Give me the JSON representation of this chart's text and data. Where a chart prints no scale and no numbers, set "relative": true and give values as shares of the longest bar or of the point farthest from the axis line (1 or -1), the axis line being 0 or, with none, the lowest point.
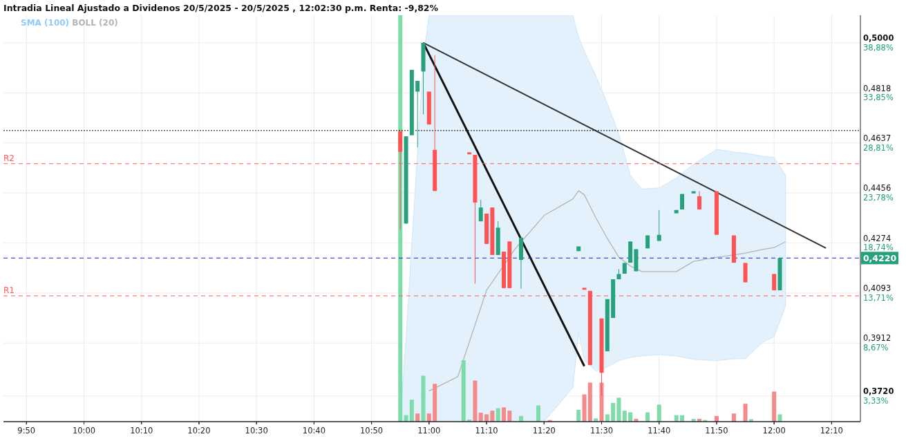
{
  "chart_data": [
    {
      "type": "candlestick",
      "title": "Intradia Lineal Ajustado a Dividenos 20/5/2025 - 20/5/2025 , 12:02:30 p.m. Renta: -9,82%",
      "x": [
        "2025-05-20T10:55",
        "2025-05-20T10:56",
        "2025-05-20T10:57",
        "2025-05-20T10:58",
        "2025-05-20T10:59",
        "2025-05-20T11:00",
        "2025-05-20T11:01",
        "2025-05-20T11:07",
        "2025-05-20T11:08",
        "2025-05-20T11:09",
        "2025-05-20T11:10",
        "2025-05-20T11:11",
        "2025-05-20T11:12",
        "2025-05-20T11:13",
        "2025-05-20T11:14",
        "2025-05-20T11:16",
        "2025-05-20T11:26",
        "2025-05-20T11:27",
        "2025-05-20T11:28",
        "2025-05-20T11:30",
        "2025-05-20T11:31",
        "2025-05-20T11:32",
        "2025-05-20T11:33",
        "2025-05-20T11:34",
        "2025-05-20T11:35",
        "2025-05-20T11:36",
        "2025-05-20T11:38",
        "2025-05-20T11:40",
        "2025-05-20T11:43",
        "2025-05-20T11:44",
        "2025-05-20T11:46",
        "2025-05-20T11:47",
        "2025-05-20T11:50",
        "2025-05-20T11:53",
        "2025-05-20T11:55",
        "2025-05-20T12:00",
        "2025-05-20T12:01"
      ],
      "ohlc": [
        [
          0.4679,
          0.4679,
          0.4322,
          0.4605
        ],
        [
          0.4345,
          0.4661,
          0.4345,
          0.4661
        ],
        [
          0.4665,
          0.4902,
          0.4665,
          0.4902
        ],
        [
          0.4823,
          0.4862,
          0.4621,
          0.4862
        ],
        [
          0.4896,
          0.5,
          0.4741,
          0.5
        ],
        [
          0.4823,
          0.4823,
          0.4704,
          0.4704
        ],
        [
          0.4612,
          0.4955,
          0.4463,
          0.4463
        ],
        [
          0.4603,
          0.4603,
          0.4596,
          0.4596
        ],
        [
          0.4594,
          0.4594,
          0.4127,
          0.4421
        ],
        [
          0.4353,
          0.4431,
          0.4353,
          0.4403
        ],
        [
          0.4381,
          0.4381,
          0.4271,
          0.4271
        ],
        [
          0.4403,
          0.4403,
          0.4231,
          0.4231
        ],
        [
          0.4231,
          0.4353,
          0.4231,
          0.433
        ],
        [
          0.4243,
          0.4243,
          0.4111,
          0.4111
        ],
        [
          0.428,
          0.428,
          0.4111,
          0.4111
        ],
        [
          0.4213,
          0.4294,
          0.4109,
          0.4294
        ],
        [
          0.4245,
          0.4262,
          0.4245,
          0.4262
        ],
        [
          0.4112,
          0.4112,
          0.4105,
          0.4105
        ],
        [
          0.4101,
          0.4101,
          0.3832,
          0.3832
        ],
        [
          0.4001,
          0.4001,
          0.372,
          0.3804
        ],
        [
          0.3882,
          0.4071,
          0.3882,
          0.4071
        ],
        [
          0.4003,
          0.4143,
          0.4003,
          0.4143
        ],
        [
          0.4143,
          0.418,
          0.4143,
          0.4162
        ],
        [
          0.4163,
          0.4202,
          0.4163,
          0.4202
        ],
        [
          0.4203,
          0.428,
          0.4203,
          0.428
        ],
        [
          0.4172,
          0.4252,
          0.4172,
          0.4252
        ],
        [
          0.4255,
          0.4302,
          0.4255,
          0.4302
        ],
        [
          0.4282,
          0.4394,
          0.4282,
          0.4304
        ],
        [
          0.4382,
          0.4394,
          0.4382,
          0.4394
        ],
        [
          0.4396,
          0.4452,
          0.4396,
          0.4452
        ],
        [
          0.4454,
          0.4462,
          0.4454,
          0.4462
        ],
        [
          0.4444,
          0.4462,
          0.4396,
          0.4396
        ],
        [
          0.4462,
          0.4462,
          0.4304,
          0.4304
        ],
        [
          0.4302,
          0.4302,
          0.4203,
          0.4203
        ],
        [
          0.4202,
          0.4202,
          0.4132,
          0.4132
        ],
        [
          0.4162,
          0.4162,
          0.4103,
          0.4103
        ],
        [
          0.4103,
          0.422,
          0.4103,
          0.422
        ]
      ],
      "series": [
        {
          "name": "BOLL (20)",
          "type": "line",
          "color": "#b4b4b4",
          "x": [
            "2025-05-20T10:55",
            "2025-05-20T10:56",
            "2025-05-20T10:57",
            "2025-05-20T10:58",
            "2025-05-20T10:59",
            "2025-05-20T11:00",
            "2025-05-20T11:05",
            "2025-05-20T11:10",
            "2025-05-20T11:15",
            "2025-05-20T11:20",
            "2025-05-20T11:25",
            "2025-05-20T11:26",
            "2025-05-20T11:27",
            "2025-05-20T11:29",
            "2025-05-20T11:31",
            "2025-05-20T11:33",
            "2025-05-20T11:35",
            "2025-05-20T11:37",
            "2025-05-20T11:40",
            "2025-05-20T11:43",
            "2025-05-20T11:46",
            "2025-05-20T11:50",
            "2025-05-20T11:53",
            "2025-05-20T11:55",
            "2025-05-20T11:58",
            "2025-05-20T12:00",
            "2025-05-20T12:02"
          ],
          "values": [
            null,
            null,
            null,
            null,
            null,
            0.3738,
            0.379,
            0.4103,
            0.4254,
            0.4374,
            0.4434,
            0.4464,
            0.4449,
            0.4366,
            0.4291,
            0.4223,
            0.4191,
            0.4171,
            0.4171,
            0.4171,
            0.4208,
            0.4223,
            0.4231,
            0.4238,
            0.4251,
            0.4258,
            0.4279
          ],
          "lower": [
            0.3627,
            0.3627,
            0.3627,
            0.3627,
            0.3627,
            0.3627,
            0.3627,
            0.3627,
            0.3627,
            0.3627,
            0.375,
            0.3947,
            0.385,
            0.381,
            0.3825,
            0.3848,
            0.386,
            0.3865,
            0.387,
            0.3865,
            0.3853,
            0.3848,
            0.3855,
            0.3855,
            0.3915,
            0.3935,
            0.4046
          ],
          "upper": [
            0.3627,
            0.393,
            0.427,
            0.46,
            0.494,
            0.51,
            0.51,
            0.51,
            0.51,
            0.51,
            0.51,
            0.502,
            0.497,
            0.488,
            0.478,
            0.467,
            0.452,
            0.447,
            0.4474,
            0.451,
            0.456,
            0.4614,
            0.4604,
            0.46,
            0.4589,
            0.4584,
            0.452
          ]
        },
        {
          "type": "line",
          "color": "#111111",
          "x": [
            "2025-05-20T10:59",
            "2025-05-20T11:27"
          ],
          "values": [
            0.5,
            0.3828
          ]
        },
        {
          "type": "line",
          "color": "#333333",
          "x": [
            "2025-05-20T10:59",
            "2025-05-20T12:09"
          ],
          "values": [
            0.5,
            0.4256
          ]
        }
      ],
      "ylim": [
        0.3627,
        0.51
      ],
      "yticks": [
        {
          "value": 0.5,
          "label": "0,5000"
        },
        {
          "value": 0.4818,
          "label": "0,4818"
        },
        {
          "value": 0.4637,
          "label": "0,4637"
        },
        {
          "value": 0.4456,
          "label": "0,4456"
        },
        {
          "value": 0.4274,
          "label": "0,4274"
        },
        {
          "value": 0.4093,
          "label": "0,4093"
        },
        {
          "value": 0.3912,
          "label": "0,3912"
        },
        {
          "value": 0.372,
          "label": "0,3720"
        }
      ],
      "y2lim": [
        0.75,
        41.67
      ],
      "y2ticks": [
        {
          "value": 38.88,
          "label": "38,88%"
        },
        {
          "value": 33.85,
          "label": "33,85%"
        },
        {
          "value": 28.81,
          "label": "28,81%"
        },
        {
          "value": 23.78,
          "label": "23,78%"
        },
        {
          "value": 18.74,
          "label": "18,74%"
        },
        {
          "value": 13.71,
          "label": "13,71%"
        },
        {
          "value": 8.67,
          "label": "8,67%"
        },
        {
          "value": 3.33,
          "label": "3,33%"
        }
      ],
      "xlim": [
        "2025-05-20T09:46",
        "2025-05-20T12:15"
      ],
      "xticks": [
        {
          "value": "2025-05-20T09:50",
          "label": null
        },
        {
          "value": "2025-05-20T10:00",
          "label": null
        },
        {
          "value": "2025-05-20T10:10",
          "label": null
        },
        {
          "value": "2025-05-20T10:20",
          "label": null
        },
        {
          "value": "2025-05-20T10:30",
          "label": null
        },
        {
          "value": "2025-05-20T10:40",
          "label": null
        },
        {
          "value": "2025-05-20T10:50",
          "label": null
        },
        {
          "value": "2025-05-20T11:00",
          "label": null
        },
        {
          "value": "2025-05-20T11:10",
          "label": null
        },
        {
          "value": "2025-05-20T11:20",
          "label": null
        },
        {
          "value": "2025-05-20T11:30",
          "label": null
        },
        {
          "value": "2025-05-20T11:40",
          "label": null
        },
        {
          "value": "2025-05-20T11:50",
          "label": null
        },
        {
          "value": "2025-05-20T12:00",
          "label": null
        },
        {
          "value": "2025-05-20T12:10",
          "label": null
        }
      ],
      "tick_labels": "y",
      "ref_lines": [
        {
          "axis": "y",
          "value": 0.4682,
          "color": "#000000",
          "line_style": "dotted"
        },
        {
          "axis": "y",
          "value": 0.4562,
          "label": "R2",
          "color": "#ff5a5a",
          "line_style": "dashed"
        },
        {
          "axis": "y",
          "value": 0.422,
          "label": "0,4220",
          "color": "#2020c8",
          "line_style": "dashed"
        },
        {
          "axis": "y",
          "value": 0.4083,
          "label": "R1",
          "color": "#ff5a5a",
          "line_style": "dashed"
        }
      ],
      "annotations": [
        "SMA (100)"
      ],
      "legend": "top left",
      "grid": true
    },
    {
      "type": "bar",
      "relative": true,
      "xlim": [
        "2025-05-20T09:46",
        "2025-05-20T12:15"
      ],
      "xticks": [
        {
          "value": "2025-05-20T09:50",
          "label": "9:50"
        },
        {
          "value": "2025-05-20T10:00",
          "label": "10:00"
        },
        {
          "value": "2025-05-20T10:10",
          "label": "10:10"
        },
        {
          "value": "2025-05-20T10:20",
          "label": "10:20"
        },
        {
          "value": "2025-05-20T10:30",
          "label": "10:30"
        },
        {
          "value": "2025-05-20T10:40",
          "label": "10:40"
        },
        {
          "value": "2025-05-20T10:50",
          "label": "10:50"
        },
        {
          "value": "2025-05-20T11:00",
          "label": "11:00"
        },
        {
          "value": "2025-05-20T11:10",
          "label": "11:10"
        },
        {
          "value": "2025-05-20T11:20",
          "label": "11:20"
        },
        {
          "value": "2025-05-20T11:30",
          "label": "11:30"
        },
        {
          "value": "2025-05-20T11:40",
          "label": "11:40"
        },
        {
          "value": "2025-05-20T11:50",
          "label": "11:50"
        },
        {
          "value": "2025-05-20T12:00",
          "label": "12:00"
        },
        {
          "value": "2025-05-20T12:10",
          "label": "12:10"
        }
      ],
      "x": [
        "2025-05-20T10:55",
        "2025-05-20T10:56",
        "2025-05-20T10:57",
        "2025-05-20T10:58",
        "2025-05-20T10:59",
        "2025-05-20T11:00",
        "2025-05-20T11:01",
        "2025-05-20T11:06",
        "2025-05-20T11:07",
        "2025-05-20T11:08",
        "2025-05-20T11:09",
        "2025-05-20T11:10",
        "2025-05-20T11:11",
        "2025-05-20T11:12",
        "2025-05-20T11:13",
        "2025-05-20T11:14",
        "2025-05-20T11:16",
        "2025-05-20T11:19",
        "2025-05-20T11:21",
        "2025-05-20T11:26",
        "2025-05-20T11:27",
        "2025-05-20T11:28",
        "2025-05-20T11:29",
        "2025-05-20T11:30",
        "2025-05-20T11:31",
        "2025-05-20T11:32",
        "2025-05-20T11:33",
        "2025-05-20T11:34",
        "2025-05-20T11:35",
        "2025-05-20T11:36",
        "2025-05-20T11:38",
        "2025-05-20T11:40",
        "2025-05-20T11:43",
        "2025-05-20T11:44",
        "2025-05-20T11:46",
        "2025-05-20T11:47",
        "2025-05-20T11:48",
        "2025-05-20T11:50",
        "2025-05-20T11:53",
        "2025-05-20T11:55",
        "2025-05-20T11:56",
        "2025-05-20T12:00",
        "2025-05-20T12:01"
      ],
      "values": [
        1,
        0.016,
        0.054,
        0.02,
        0.113,
        0.02,
        0.093,
        0.151,
        0.005,
        0.101,
        0.022,
        0.018,
        0.027,
        0.033,
        0.035,
        0.027,
        0.014,
        0.04,
        0.004,
        0.029,
        0.067,
        0.096,
        0.008,
        0.096,
        0.018,
        0.046,
        0.059,
        0.027,
        0.023,
        0.007,
        0.023,
        0.042,
        0.016,
        0.016,
        0.007,
        0.007,
        0.004,
        0.014,
        0.02,
        0.044,
        0.006,
        0.074,
        0.018
      ],
      "colors": [
        "#7fdcaa",
        "#7fdcaa",
        "#7fdcaa",
        "#f48a8a",
        "#7fdcaa",
        "#f48a8a",
        "#f48a8a",
        "#7fdcaa",
        "#7fdcaa",
        "#f48a8a",
        "#f48a8a",
        "#f48a8a",
        "#f48a8a",
        "#7fdcaa",
        "#f48a8a",
        "#f48a8a",
        "#7fdcaa",
        "#7fdcaa",
        "#f48a8a",
        "#7fdcaa",
        "#f48a8a",
        "#f48a8a",
        "#7fdcaa",
        "#f48a8a",
        "#7fdcaa",
        "#7fdcaa",
        "#7fdcaa",
        "#7fdcaa",
        "#7fdcaa",
        "#f48a8a",
        "#7fdcaa",
        "#7fdcaa",
        "#7fdcaa",
        "#7fdcaa",
        "#7fdcaa",
        "#f48a8a",
        "#7fdcaa",
        "#f48a8a",
        "#f48a8a",
        "#f48a8a",
        "#7fdcaa",
        "#f48a8a",
        "#7fdcaa"
      ]
    }
  ]
}
